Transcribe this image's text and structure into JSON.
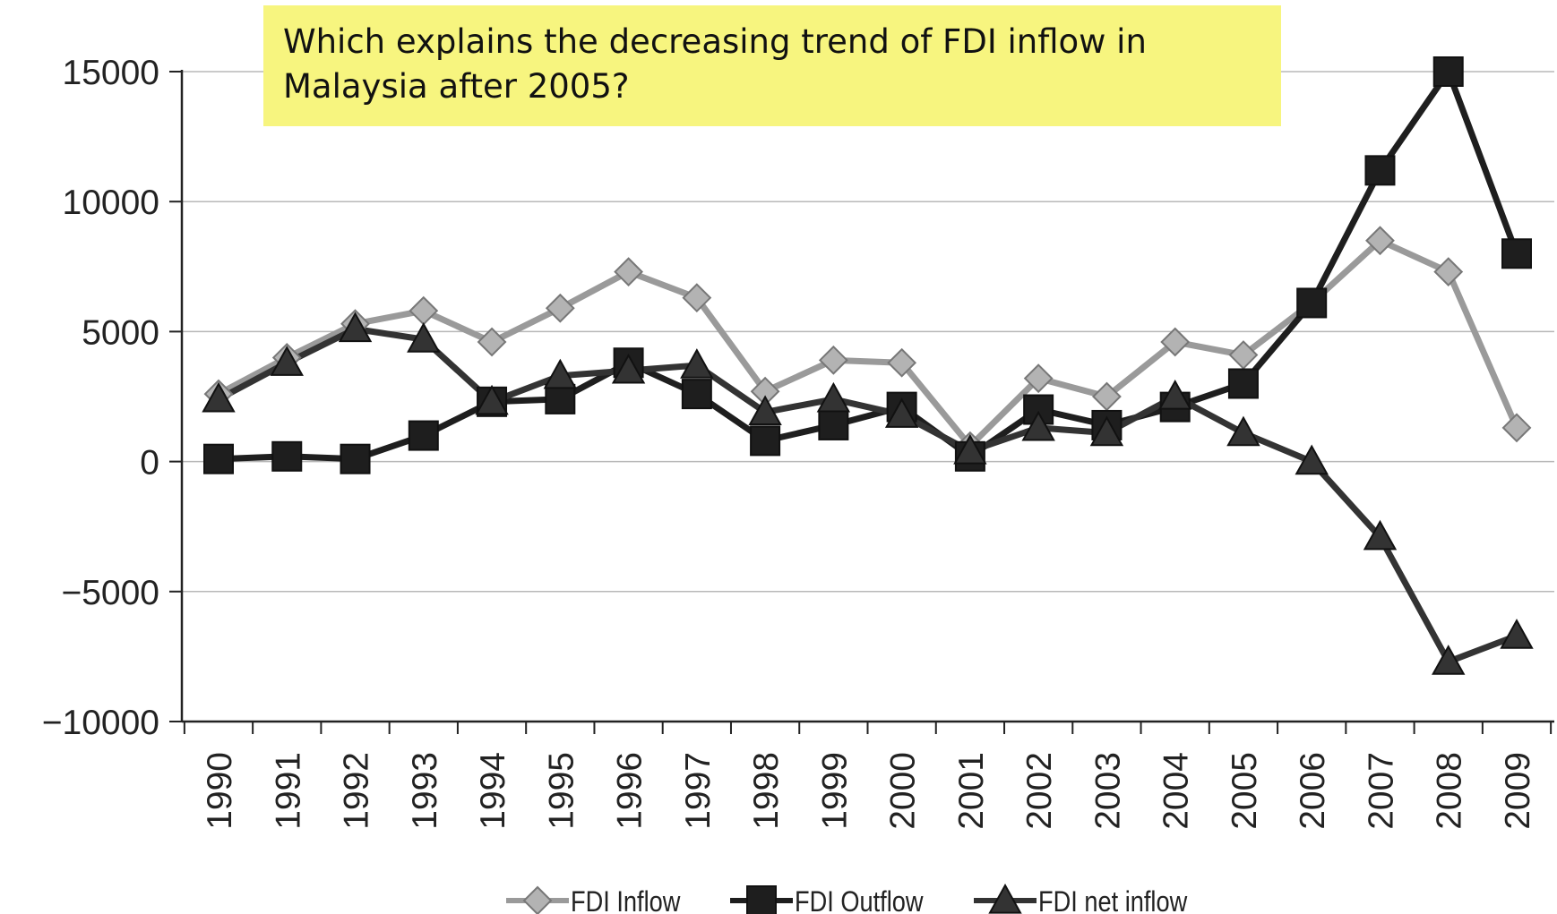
{
  "chart_data": {
    "type": "line",
    "annotation": "Which explains the decreasing trend of FDI inflow in Malaysia after 2005?",
    "categories": [
      "1990",
      "1991",
      "1992",
      "1993",
      "1994",
      "1995",
      "1996",
      "1997",
      "1998",
      "1999",
      "2000",
      "2001",
      "2002",
      "2003",
      "2004",
      "2005",
      "2006",
      "2007",
      "2008",
      "2009"
    ],
    "series": [
      {
        "name": "FDI Inflow",
        "color": "#9a9a9a",
        "marker": "diamond",
        "values": [
          2600,
          4000,
          5300,
          5800,
          4600,
          5900,
          7300,
          6300,
          2700,
          3900,
          3800,
          600,
          3200,
          2500,
          4600,
          4100,
          6100,
          8500,
          7300,
          1300
        ]
      },
      {
        "name": "FDI Outflow",
        "color": "#1e1e1e",
        "marker": "square",
        "values": [
          100,
          200,
          100,
          1000,
          2300,
          2400,
          3800,
          2600,
          800,
          1400,
          2100,
          200,
          2000,
          1400,
          2100,
          3000,
          6100,
          11200,
          15000,
          8000
        ]
      },
      {
        "name": "FDI net inflow",
        "color": "#333333",
        "marker": "triangle",
        "values": [
          2400,
          3800,
          5100,
          4700,
          2300,
          3300,
          3500,
          3700,
          1900,
          2400,
          1800,
          400,
          1300,
          1100,
          2500,
          1100,
          0,
          -2900,
          -7700,
          -6700
        ]
      }
    ],
    "ylim": [
      -10000,
      15000
    ],
    "yticks": [
      {
        "value": -10000,
        "label": "−10000"
      },
      {
        "value": -5000,
        "label": "−5000"
      },
      0,
      5000,
      10000,
      15000
    ],
    "grid": true,
    "legend": "bottom"
  }
}
